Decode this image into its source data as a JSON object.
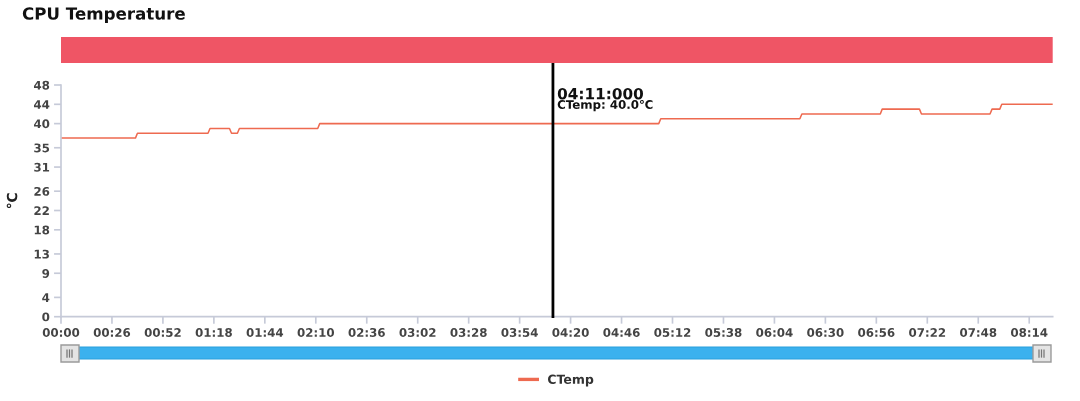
{
  "chart_data": {
    "type": "line",
    "title": "CPU Temperature",
    "ylabel": "℃",
    "x": [
      0,
      0.633,
      0.65,
      1.25,
      1.267,
      1.433,
      1.45,
      1.5,
      1.517,
      2.183,
      2.2,
      5.083,
      5.1,
      6.283,
      6.3,
      6.967,
      6.983,
      7.3,
      7.317,
      7.9,
      7.917,
      7.983,
      8.0,
      8.433
    ],
    "series": [
      {
        "name": "CTemp",
        "color": "#ee6a50",
        "values": [
          37,
          37,
          38,
          38,
          39,
          39,
          38,
          38,
          39,
          39,
          40,
          40,
          41,
          41,
          42,
          42,
          43,
          43,
          42,
          42,
          43,
          43,
          44,
          44
        ]
      }
    ],
    "xlim": [
      0,
      8.433
    ],
    "ylim": [
      0,
      48
    ],
    "xticks": [
      {
        "value": 0,
        "label": "00:00"
      },
      {
        "value": 0.4333,
        "label": "00:26"
      },
      {
        "value": 0.8667,
        "label": "00:52"
      },
      {
        "value": 1.3,
        "label": "01:18"
      },
      {
        "value": 1.7333,
        "label": "01:44"
      },
      {
        "value": 2.1667,
        "label": "02:10"
      },
      {
        "value": 2.6,
        "label": "02:36"
      },
      {
        "value": 3.0333,
        "label": "03:02"
      },
      {
        "value": 3.4667,
        "label": "03:28"
      },
      {
        "value": 3.9,
        "label": "03:54"
      },
      {
        "value": 4.3333,
        "label": "04:20"
      },
      {
        "value": 4.7667,
        "label": "04:46"
      },
      {
        "value": 5.2,
        "label": "05:12"
      },
      {
        "value": 5.6333,
        "label": "05:38"
      },
      {
        "value": 6.0667,
        "label": "06:04"
      },
      {
        "value": 6.5,
        "label": "06:30"
      },
      {
        "value": 6.9333,
        "label": "06:56"
      },
      {
        "value": 7.3667,
        "label": "07:22"
      },
      {
        "value": 7.8,
        "label": "07:48"
      },
      {
        "value": 8.2333,
        "label": "08:14"
      }
    ],
    "yticks": [
      0,
      4,
      9,
      13,
      18,
      22,
      26,
      31,
      35,
      40,
      44,
      48
    ],
    "ref_lines": [
      {
        "axis": "x",
        "value": 4.1833,
        "label": "04:11:000",
        "color": "#000000"
      }
    ],
    "annotations": [
      {
        "text": "CTemp: 40.0℃",
        "x": 4.1833,
        "y": 40
      }
    ],
    "legend": "bottom"
  }
}
